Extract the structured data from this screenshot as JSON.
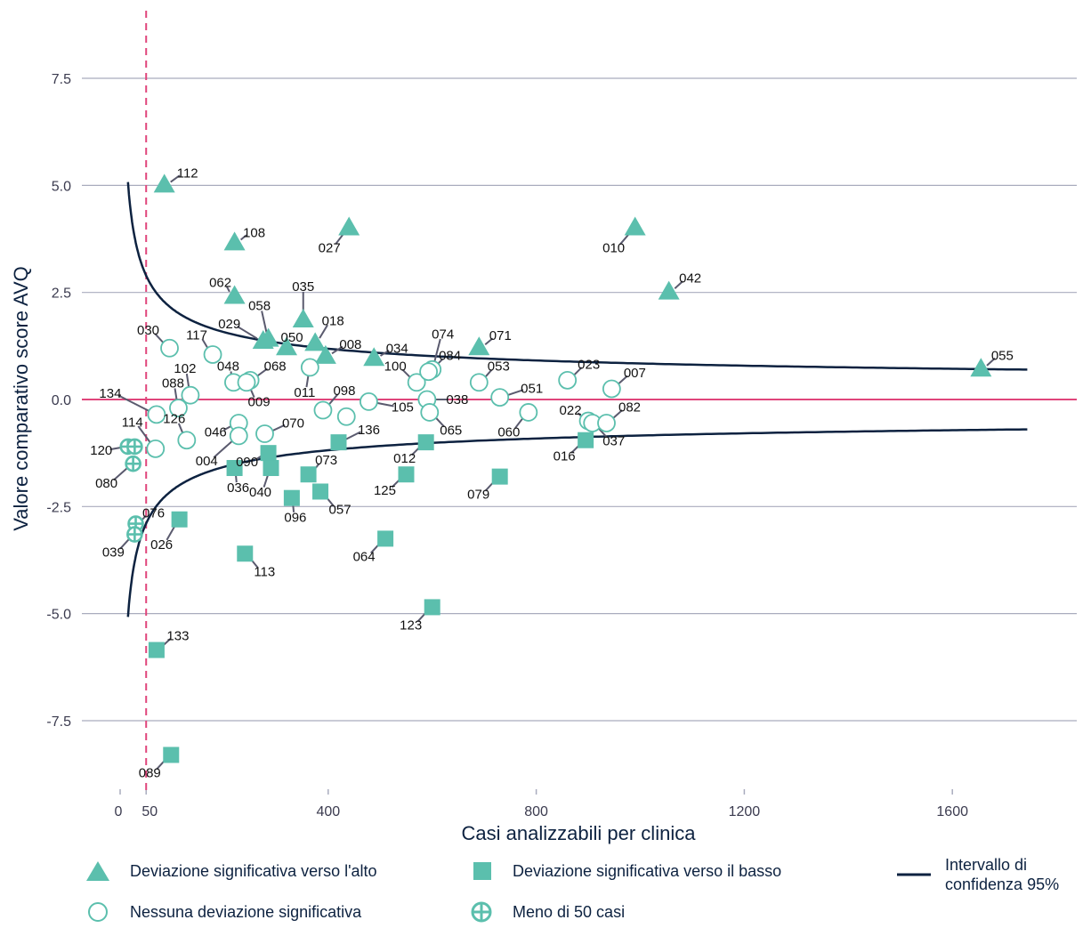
{
  "chart_data": {
    "type": "scatter",
    "title": "",
    "xlabel": "Casi analizzabili per clinica",
    "ylabel": "Valore comparativo score AVQ",
    "xlim": [
      -5,
      1765
    ],
    "ylim": [
      -9,
      9
    ],
    "x_ticks": [
      0,
      50,
      400,
      800,
      1200,
      1600
    ],
    "y_ticks": [
      7.5,
      5.0,
      2.5,
      0.0,
      -2.5,
      -5.0,
      -7.5
    ],
    "y_tick_labels": [
      "7.5",
      "5.0",
      "2.5",
      "0.0",
      "-2.5",
      "-5.0",
      "-7.5"
    ],
    "reference_line_y": 0.0,
    "reference_line_x": 50,
    "grid": "horizontal",
    "legend_position": "bottom",
    "colors": {
      "marker": "#5bbfad",
      "ci": "#0d2240",
      "ref": "#e0457b",
      "grid": "#a9acbe"
    },
    "series": [
      {
        "name": "Deviazione significativa verso l'alto",
        "marker": "triangle",
        "points": [
          {
            "id": "112",
            "x": 85,
            "y": 5.0
          },
          {
            "id": "108",
            "x": 220,
            "y": 3.65
          },
          {
            "id": "027",
            "x": 440,
            "y": 4.0
          },
          {
            "id": "010",
            "x": 990,
            "y": 4.0
          },
          {
            "id": "042",
            "x": 1055,
            "y": 2.5
          },
          {
            "id": "062",
            "x": 220,
            "y": 2.4
          },
          {
            "id": "035",
            "x": 352,
            "y": 1.85
          },
          {
            "id": "058",
            "x": 285,
            "y": 1.4
          },
          {
            "id": "029",
            "x": 275,
            "y": 1.35
          },
          {
            "id": "050",
            "x": 320,
            "y": 1.2
          },
          {
            "id": "018",
            "x": 375,
            "y": 1.3
          },
          {
            "id": "008",
            "x": 395,
            "y": 1.0
          },
          {
            "id": "034",
            "x": 488,
            "y": 0.95
          },
          {
            "id": "071",
            "x": 690,
            "y": 1.2
          },
          {
            "id": "055",
            "x": 1655,
            "y": 0.7
          }
        ]
      },
      {
        "name": "Deviazione significativa verso il basso",
        "marker": "square",
        "points": [
          {
            "id": "136",
            "x": 420,
            "y": -1.0
          },
          {
            "id": "012",
            "x": 588,
            "y": -1.0
          },
          {
            "id": "016",
            "x": 895,
            "y": -0.95
          },
          {
            "id": "073",
            "x": 362,
            "y": -1.75
          },
          {
            "id": "125",
            "x": 550,
            "y": -1.75
          },
          {
            "id": "079",
            "x": 730,
            "y": -1.8
          },
          {
            "id": "090",
            "x": 285,
            "y": -1.25
          },
          {
            "id": "036",
            "x": 220,
            "y": -1.6
          },
          {
            "id": "040",
            "x": 290,
            "y": -1.6
          },
          {
            "id": "057",
            "x": 385,
            "y": -2.15
          },
          {
            "id": "096",
            "x": 330,
            "y": -2.3
          },
          {
            "id": "026",
            "x": 114,
            "y": -2.8
          },
          {
            "id": "064",
            "x": 510,
            "y": -3.25
          },
          {
            "id": "113",
            "x": 240,
            "y": -3.6
          },
          {
            "id": "123",
            "x": 600,
            "y": -4.85
          },
          {
            "id": "133",
            "x": 70,
            "y": -5.85
          },
          {
            "id": "089",
            "x": 98,
            "y": -8.3
          }
        ]
      },
      {
        "name": "Nessuna deviazione significativa",
        "marker": "circle-open",
        "points": [
          {
            "id": "030",
            "x": 95,
            "y": 1.2
          },
          {
            "id": "117",
            "x": 178,
            "y": 1.05
          },
          {
            "id": "048",
            "x": 218,
            "y": 0.4
          },
          {
            "id": "068",
            "x": 250,
            "y": 0.45
          },
          {
            "id": "009",
            "x": 243,
            "y": 0.4
          },
          {
            "id": "102",
            "x": 135,
            "y": 0.1
          },
          {
            "id": "011",
            "x": 365,
            "y": 0.75
          },
          {
            "id": "088",
            "x": 112,
            "y": -0.2
          },
          {
            "id": "134",
            "x": 70,
            "y": -0.35
          },
          {
            "id": "046",
            "x": 228,
            "y": -0.55
          },
          {
            "id": "126",
            "x": 128,
            "y": -0.95
          },
          {
            "id": "114",
            "x": 68,
            "y": -1.15
          },
          {
            "id": "004",
            "x": 228,
            "y": -0.85
          },
          {
            "id": "070",
            "x": 278,
            "y": -0.8
          },
          {
            "id": "098",
            "x": 390,
            "y": -0.25
          },
          {
            "id": "105",
            "x": 478,
            "y": -0.05
          },
          {
            "id": "100",
            "x": 570,
            "y": 0.4
          },
          {
            "id": "074",
            "x": 600,
            "y": 0.7
          },
          {
            "id": "084",
            "x": 593,
            "y": 0.65
          },
          {
            "id": "038",
            "x": 590,
            "y": 0.0
          },
          {
            "id": "065",
            "x": 595,
            "y": -0.3
          },
          {
            "id": "105b",
            "x": 435,
            "y": -0.4
          },
          {
            "id": "053",
            "x": 690,
            "y": 0.4
          },
          {
            "id": "051",
            "x": 730,
            "y": 0.05
          },
          {
            "id": "060",
            "x": 785,
            "y": -0.3
          },
          {
            "id": "023",
            "x": 860,
            "y": 0.45
          },
          {
            "id": "007",
            "x": 945,
            "y": 0.25
          },
          {
            "id": "022",
            "x": 900,
            "y": -0.5
          },
          {
            "id": "037",
            "x": 908,
            "y": -0.55
          },
          {
            "id": "082",
            "x": 935,
            "y": -0.55
          }
        ]
      },
      {
        "name": "Meno di 50 casi",
        "marker": "circle-plus",
        "points": [
          {
            "id": "120",
            "x": 15,
            "y": -1.1
          },
          {
            "id": "120b",
            "x": 28,
            "y": -1.1
          },
          {
            "id": "080",
            "x": 25,
            "y": -1.5
          },
          {
            "id": "076",
            "x": 30,
            "y": -2.9
          },
          {
            "id": "039",
            "x": 28,
            "y": -3.15
          }
        ]
      }
    ],
    "confidence_interval": {
      "name": "Intervallo di confidenza 95%",
      "x_range": [
        15,
        1745
      ]
    },
    "legend": {
      "up": "Deviazione significativa verso l'alto",
      "down": "Deviazione significativa verso il basso",
      "none": "Nessuna deviazione significativa",
      "few": "Meno di 50 casi",
      "ci_line1": "Intervallo di",
      "ci_line2": "confidenza 95%"
    }
  }
}
